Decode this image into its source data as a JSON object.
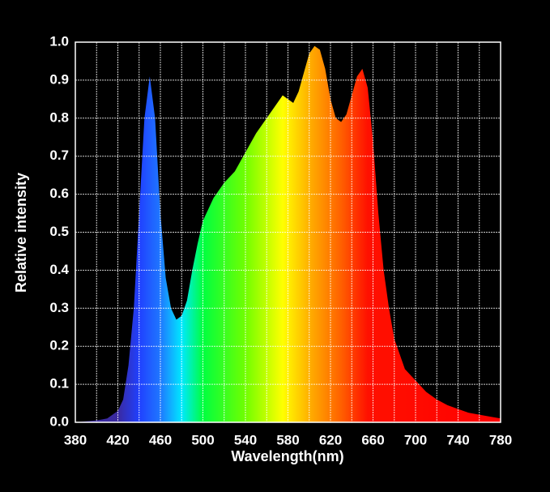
{
  "chart_data": {
    "type": "area",
    "x_label": "Wavelength(nm)",
    "y_label": "Relative intensity",
    "x": [
      380,
      400,
      410,
      420,
      425,
      430,
      435,
      440,
      445,
      450,
      455,
      460,
      465,
      470,
      475,
      480,
      485,
      490,
      495,
      500,
      505,
      510,
      520,
      530,
      540,
      550,
      560,
      570,
      575,
      580,
      585,
      590,
      595,
      600,
      605,
      610,
      615,
      620,
      625,
      630,
      635,
      640,
      645,
      650,
      655,
      660,
      665,
      670,
      675,
      680,
      690,
      700,
      710,
      720,
      730,
      740,
      750,
      760,
      770,
      780
    ],
    "values": [
      0.0,
      0.005,
      0.01,
      0.03,
      0.06,
      0.15,
      0.3,
      0.55,
      0.8,
      0.91,
      0.8,
      0.55,
      0.38,
      0.3,
      0.27,
      0.28,
      0.32,
      0.4,
      0.47,
      0.53,
      0.56,
      0.59,
      0.63,
      0.66,
      0.71,
      0.76,
      0.8,
      0.84,
      0.86,
      0.85,
      0.84,
      0.87,
      0.92,
      0.97,
      0.99,
      0.98,
      0.93,
      0.85,
      0.8,
      0.79,
      0.81,
      0.86,
      0.91,
      0.93,
      0.88,
      0.74,
      0.55,
      0.4,
      0.3,
      0.22,
      0.14,
      0.11,
      0.08,
      0.06,
      0.045,
      0.035,
      0.025,
      0.02,
      0.015,
      0.01
    ],
    "xlim": [
      380,
      780
    ],
    "ylim": [
      0,
      1
    ],
    "xticks": [
      380,
      420,
      460,
      500,
      540,
      580,
      620,
      660,
      700,
      740,
      780
    ],
    "x_minor_grid": [
      400,
      440,
      480,
      520,
      560,
      600,
      640,
      680,
      720,
      760
    ],
    "yticks": [
      {
        "value": 0,
        "label": "0.0"
      },
      0.1,
      0.2,
      0.3,
      0.4,
      0.5,
      0.6,
      0.7,
      0.8,
      0.9,
      {
        "value": 1,
        "label": "1.0"
      }
    ],
    "grid": true,
    "grid_color": "#ffffff",
    "gradient_stops": [
      {
        "x": 420,
        "color": "#3a2aa0"
      },
      {
        "x": 440,
        "color": "#2040ff"
      },
      {
        "x": 460,
        "color": "#1f78ff"
      },
      {
        "x": 480,
        "color": "#00e8ff"
      },
      {
        "x": 500,
        "color": "#00ff40"
      },
      {
        "x": 540,
        "color": "#70ff00"
      },
      {
        "x": 575,
        "color": "#ffff00"
      },
      {
        "x": 600,
        "color": "#ffb000"
      },
      {
        "x": 630,
        "color": "#ff6000"
      },
      {
        "x": 655,
        "color": "#ff1000"
      },
      {
        "x": 780,
        "color": "#ff0000"
      }
    ]
  }
}
